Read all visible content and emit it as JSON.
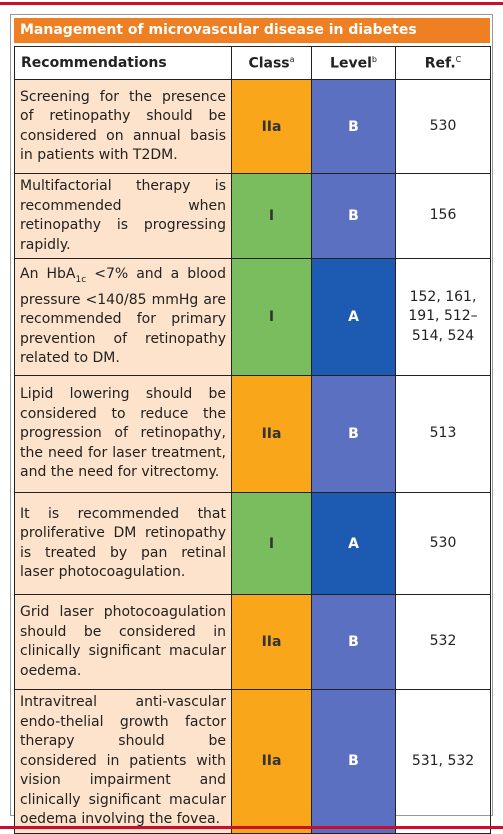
{
  "header": {
    "title": "Management of microvascular disease in diabetes"
  },
  "table": {
    "columns": [
      {
        "text": "Recommendations"
      },
      {
        "text": "Class",
        "sup": "a"
      },
      {
        "text": "Level",
        "sup": "b"
      },
      {
        "text": "Ref.",
        "sup": "C"
      }
    ],
    "rows": [
      {
        "recommendation": "Screening for the presence of retinopathy should be considered on annual basis in patients with T2DM.",
        "class": "IIa",
        "level": "B",
        "ref": "530"
      },
      {
        "recommendation": "Multifactorial therapy is recommended when retinopathy is progressing rapidly.",
        "class": "I",
        "level": "B",
        "ref": "156"
      },
      {
        "recommendation": [
          "An HbA",
          "1c",
          " <7% and a blood pressure <140/85 mmHg are recommended for primary prevention of retinopathy related to DM."
        ],
        "class": "I",
        "level": "A",
        "ref": "152, 161, 191, 512–514, 524"
      },
      {
        "recommendation": "Lipid lowering should be considered to reduce the progression of retinopathy, the need for laser treatment, and the need for vitrectomy.",
        "class": "IIa",
        "level": "B",
        "ref": "513"
      },
      {
        "recommendation": "It is recommended that proliferative DM retinopathy is treated by pan retinal laser photocoagulation.",
        "class": "I",
        "level": "A",
        "ref": "530"
      },
      {
        "recommendation": "Grid laser photocoagulation should be considered in clinically significant macular oedema.",
        "class": "IIa",
        "level": "B",
        "ref": "532"
      },
      {
        "recommendation": "Intravitreal anti-vascular endo-thelial growth factor therapy should be considered in patients with vision impairment and clinically significant macular oedema involving the fovea.",
        "class": "IIa",
        "level": "B",
        "ref": "531, 532"
      }
    ]
  }
}
